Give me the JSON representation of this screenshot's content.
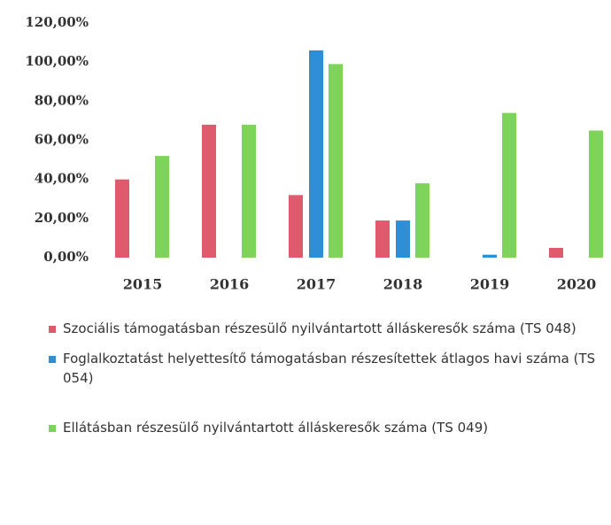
{
  "chart_data": {
    "type": "bar",
    "categories": [
      "2015",
      "2016",
      "2017",
      "2018",
      "2019",
      "2020"
    ],
    "series": [
      {
        "name": "Szociális támogatásban részesülő nyilvántartott álláskeresők száma (TS 048)",
        "color": "#e05a6e",
        "values": [
          40,
          68,
          32,
          19,
          null,
          5
        ]
      },
      {
        "name": "Foglalkoztatást helyettesítő támogatásban részesítettek átlagos havi száma (TS 054)",
        "color": "#2e8fd6",
        "values": [
          null,
          null,
          106,
          19,
          1.5,
          null
        ]
      },
      {
        "name": "Ellátásban részesülő nyilvántartott álláskeresők száma (TS 049)",
        "color": "#7ed35a",
        "values": [
          52,
          68,
          99,
          38,
          74,
          65
        ]
      }
    ],
    "ylim": [
      0,
      120
    ],
    "yticks": [
      {
        "value": 0,
        "label": "0,00%"
      },
      {
        "value": 20,
        "label": "20,00%"
      },
      {
        "value": 40,
        "label": "40,00%"
      },
      {
        "value": 60,
        "label": "60,00%"
      },
      {
        "value": 80,
        "label": "80,00%"
      },
      {
        "value": 100,
        "label": "100,00%"
      },
      {
        "value": 120,
        "label": "120,00%"
      }
    ],
    "grid": false
  }
}
